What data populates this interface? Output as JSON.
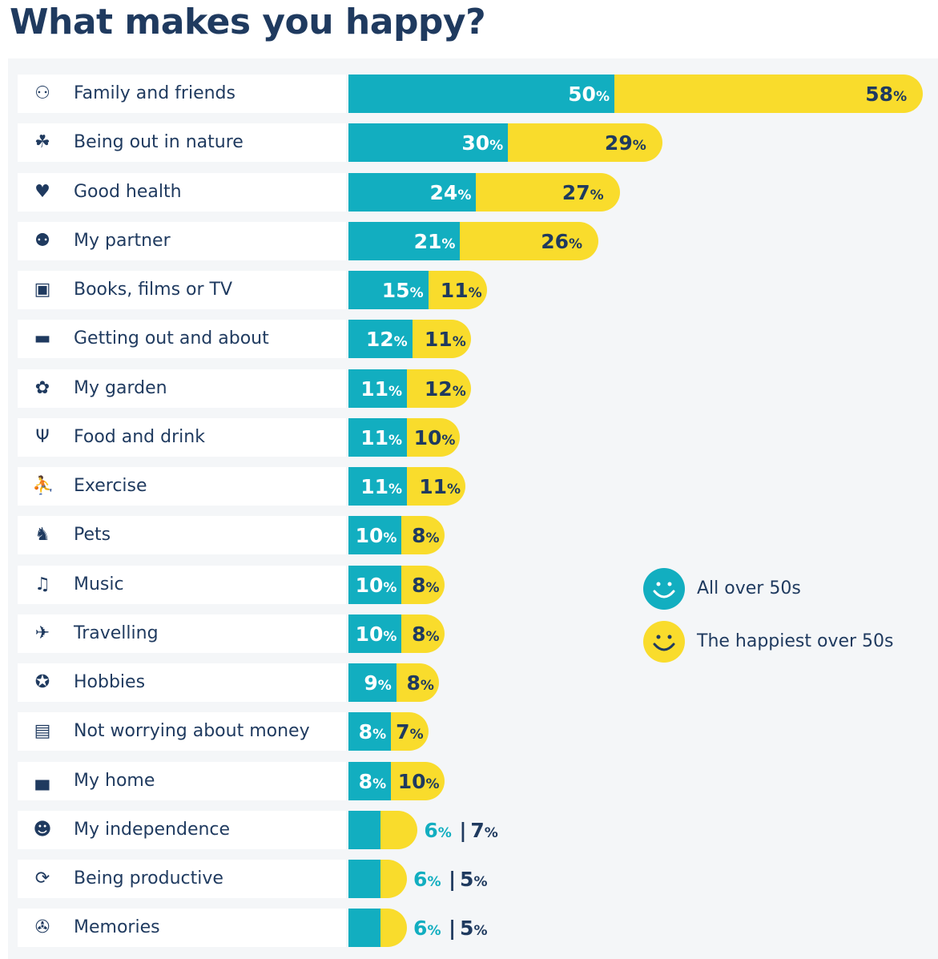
{
  "chart_data": {
    "type": "bar",
    "orientation": "horizontal",
    "stacked": true,
    "title": "What makes you happy?",
    "categories": [
      "Family and friends",
      "Being out in nature",
      "Good health",
      "My partner",
      "Books, films or TV",
      "Getting out and about",
      "My garden",
      "Food and drink",
      "Exercise",
      "Pets",
      "Music",
      "Travelling",
      "Hobbies",
      "Not worrying about money",
      "My home",
      "My independence",
      "Being productive",
      "Memories"
    ],
    "icons": [
      "family-icon",
      "nature-icon",
      "heart-check-icon",
      "partner-icon",
      "tv-icon",
      "bus-icon",
      "garden-icon",
      "food-icon",
      "exercise-icon",
      "pets-icon",
      "music-icon",
      "plane-icon",
      "hobbies-icon",
      "wallet-icon",
      "sofa-icon",
      "smile-icon",
      "refresh-icon",
      "memories-icon"
    ],
    "series": [
      {
        "name": "All over 50s",
        "color": "#12aec0",
        "values": [
          50,
          30,
          24,
          21,
          15,
          12,
          11,
          11,
          11,
          10,
          10,
          10,
          9,
          8,
          8,
          6,
          6,
          6
        ]
      },
      {
        "name": "The happiest over 50s",
        "color": "#f9dc2c",
        "values": [
          58,
          29,
          27,
          26,
          11,
          11,
          12,
          10,
          11,
          8,
          8,
          8,
          8,
          7,
          10,
          7,
          5,
          5
        ]
      }
    ],
    "unit": "%",
    "legend": "right",
    "grid": false
  },
  "colors": {
    "teal": "#12aec0",
    "yellow": "#f9dc2c",
    "navy": "#1f3a5f"
  }
}
